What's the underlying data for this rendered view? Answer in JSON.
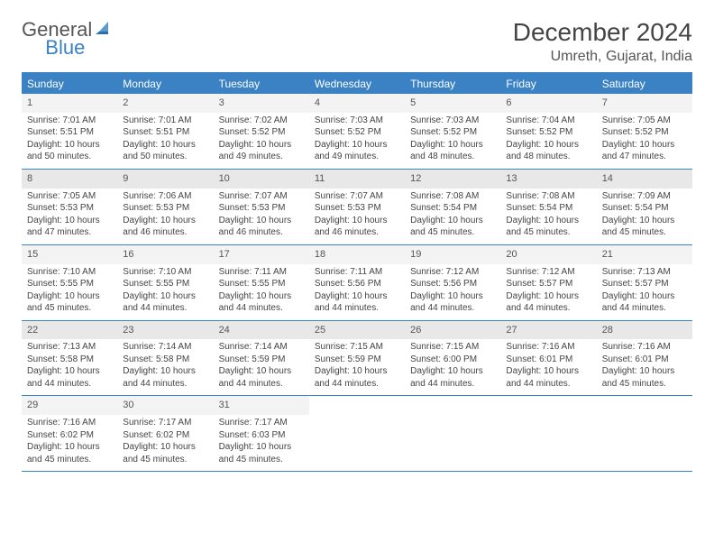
{
  "logo": {
    "text1": "General",
    "text2": "Blue"
  },
  "title": "December 2024",
  "location": "Umreth, Gujarat, India",
  "colors": {
    "accent": "#3b82c4",
    "header_bg": "#3b82c4",
    "header_text": "#ffffff",
    "row_alt1": "#e8e8e8",
    "row_alt2": "#f3f3f3",
    "text": "#444444",
    "background": "#ffffff"
  },
  "typography": {
    "title_fontsize": 28,
    "location_fontsize": 16,
    "weekday_fontsize": 12,
    "cell_fontsize": 10
  },
  "layout": {
    "columns": 7,
    "rows": 5,
    "row_parity": [
      "odd",
      "even",
      "odd",
      "even",
      "odd"
    ]
  },
  "weekdays": [
    "Sunday",
    "Monday",
    "Tuesday",
    "Wednesday",
    "Thursday",
    "Friday",
    "Saturday"
  ],
  "weeks": [
    [
      {
        "day": "1",
        "sunrise": "Sunrise: 7:01 AM",
        "sunset": "Sunset: 5:51 PM",
        "daylight": "Daylight: 10 hours and 50 minutes."
      },
      {
        "day": "2",
        "sunrise": "Sunrise: 7:01 AM",
        "sunset": "Sunset: 5:51 PM",
        "daylight": "Daylight: 10 hours and 50 minutes."
      },
      {
        "day": "3",
        "sunrise": "Sunrise: 7:02 AM",
        "sunset": "Sunset: 5:52 PM",
        "daylight": "Daylight: 10 hours and 49 minutes."
      },
      {
        "day": "4",
        "sunrise": "Sunrise: 7:03 AM",
        "sunset": "Sunset: 5:52 PM",
        "daylight": "Daylight: 10 hours and 49 minutes."
      },
      {
        "day": "5",
        "sunrise": "Sunrise: 7:03 AM",
        "sunset": "Sunset: 5:52 PM",
        "daylight": "Daylight: 10 hours and 48 minutes."
      },
      {
        "day": "6",
        "sunrise": "Sunrise: 7:04 AM",
        "sunset": "Sunset: 5:52 PM",
        "daylight": "Daylight: 10 hours and 48 minutes."
      },
      {
        "day": "7",
        "sunrise": "Sunrise: 7:05 AM",
        "sunset": "Sunset: 5:52 PM",
        "daylight": "Daylight: 10 hours and 47 minutes."
      }
    ],
    [
      {
        "day": "8",
        "sunrise": "Sunrise: 7:05 AM",
        "sunset": "Sunset: 5:53 PM",
        "daylight": "Daylight: 10 hours and 47 minutes."
      },
      {
        "day": "9",
        "sunrise": "Sunrise: 7:06 AM",
        "sunset": "Sunset: 5:53 PM",
        "daylight": "Daylight: 10 hours and 46 minutes."
      },
      {
        "day": "10",
        "sunrise": "Sunrise: 7:07 AM",
        "sunset": "Sunset: 5:53 PM",
        "daylight": "Daylight: 10 hours and 46 minutes."
      },
      {
        "day": "11",
        "sunrise": "Sunrise: 7:07 AM",
        "sunset": "Sunset: 5:53 PM",
        "daylight": "Daylight: 10 hours and 46 minutes."
      },
      {
        "day": "12",
        "sunrise": "Sunrise: 7:08 AM",
        "sunset": "Sunset: 5:54 PM",
        "daylight": "Daylight: 10 hours and 45 minutes."
      },
      {
        "day": "13",
        "sunrise": "Sunrise: 7:08 AM",
        "sunset": "Sunset: 5:54 PM",
        "daylight": "Daylight: 10 hours and 45 minutes."
      },
      {
        "day": "14",
        "sunrise": "Sunrise: 7:09 AM",
        "sunset": "Sunset: 5:54 PM",
        "daylight": "Daylight: 10 hours and 45 minutes."
      }
    ],
    [
      {
        "day": "15",
        "sunrise": "Sunrise: 7:10 AM",
        "sunset": "Sunset: 5:55 PM",
        "daylight": "Daylight: 10 hours and 45 minutes."
      },
      {
        "day": "16",
        "sunrise": "Sunrise: 7:10 AM",
        "sunset": "Sunset: 5:55 PM",
        "daylight": "Daylight: 10 hours and 44 minutes."
      },
      {
        "day": "17",
        "sunrise": "Sunrise: 7:11 AM",
        "sunset": "Sunset: 5:55 PM",
        "daylight": "Daylight: 10 hours and 44 minutes."
      },
      {
        "day": "18",
        "sunrise": "Sunrise: 7:11 AM",
        "sunset": "Sunset: 5:56 PM",
        "daylight": "Daylight: 10 hours and 44 minutes."
      },
      {
        "day": "19",
        "sunrise": "Sunrise: 7:12 AM",
        "sunset": "Sunset: 5:56 PM",
        "daylight": "Daylight: 10 hours and 44 minutes."
      },
      {
        "day": "20",
        "sunrise": "Sunrise: 7:12 AM",
        "sunset": "Sunset: 5:57 PM",
        "daylight": "Daylight: 10 hours and 44 minutes."
      },
      {
        "day": "21",
        "sunrise": "Sunrise: 7:13 AM",
        "sunset": "Sunset: 5:57 PM",
        "daylight": "Daylight: 10 hours and 44 minutes."
      }
    ],
    [
      {
        "day": "22",
        "sunrise": "Sunrise: 7:13 AM",
        "sunset": "Sunset: 5:58 PM",
        "daylight": "Daylight: 10 hours and 44 minutes."
      },
      {
        "day": "23",
        "sunrise": "Sunrise: 7:14 AM",
        "sunset": "Sunset: 5:58 PM",
        "daylight": "Daylight: 10 hours and 44 minutes."
      },
      {
        "day": "24",
        "sunrise": "Sunrise: 7:14 AM",
        "sunset": "Sunset: 5:59 PM",
        "daylight": "Daylight: 10 hours and 44 minutes."
      },
      {
        "day": "25",
        "sunrise": "Sunrise: 7:15 AM",
        "sunset": "Sunset: 5:59 PM",
        "daylight": "Daylight: 10 hours and 44 minutes."
      },
      {
        "day": "26",
        "sunrise": "Sunrise: 7:15 AM",
        "sunset": "Sunset: 6:00 PM",
        "daylight": "Daylight: 10 hours and 44 minutes."
      },
      {
        "day": "27",
        "sunrise": "Sunrise: 7:16 AM",
        "sunset": "Sunset: 6:01 PM",
        "daylight": "Daylight: 10 hours and 44 minutes."
      },
      {
        "day": "28",
        "sunrise": "Sunrise: 7:16 AM",
        "sunset": "Sunset: 6:01 PM",
        "daylight": "Daylight: 10 hours and 45 minutes."
      }
    ],
    [
      {
        "day": "29",
        "sunrise": "Sunrise: 7:16 AM",
        "sunset": "Sunset: 6:02 PM",
        "daylight": "Daylight: 10 hours and 45 minutes."
      },
      {
        "day": "30",
        "sunrise": "Sunrise: 7:17 AM",
        "sunset": "Sunset: 6:02 PM",
        "daylight": "Daylight: 10 hours and 45 minutes."
      },
      {
        "day": "31",
        "sunrise": "Sunrise: 7:17 AM",
        "sunset": "Sunset: 6:03 PM",
        "daylight": "Daylight: 10 hours and 45 minutes."
      },
      null,
      null,
      null,
      null
    ]
  ]
}
